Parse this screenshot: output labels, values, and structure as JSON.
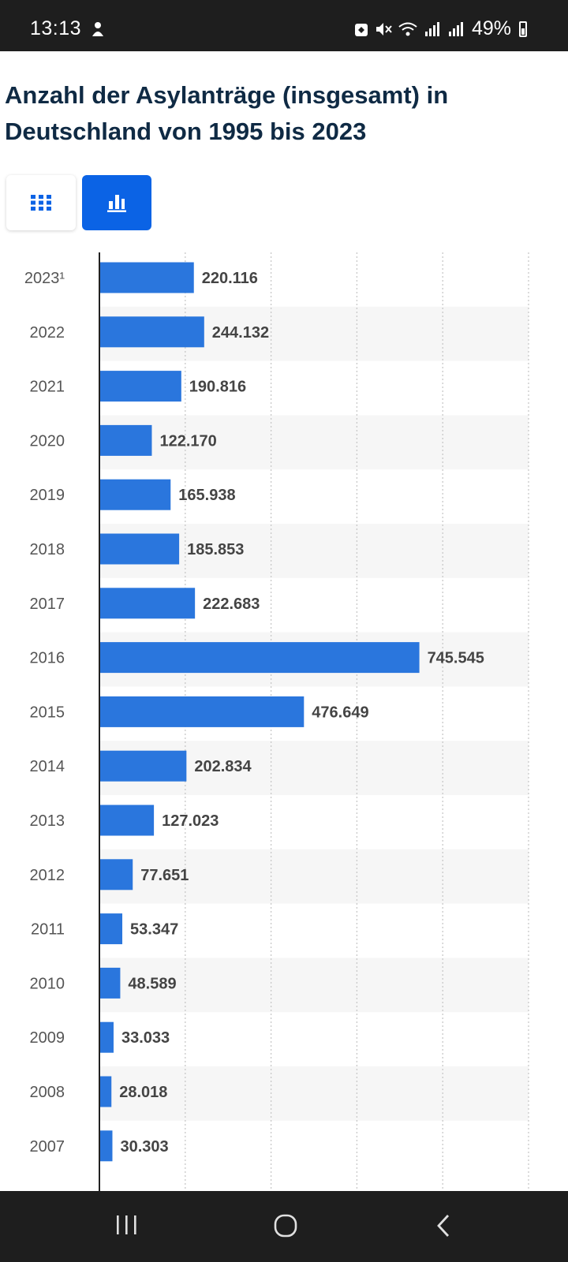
{
  "status_bar": {
    "time": "13:13",
    "battery": "49%",
    "icons": [
      "app-notification-icon",
      "mute-icon",
      "wifi-icon",
      "signal-icon",
      "signal-icon",
      "battery-icon"
    ]
  },
  "page": {
    "title": "Anzahl der Asylanträge (insgesamt) in Deutschland von 1995 bis 2023"
  },
  "view_toggle": {
    "table_icon": "grid-table-icon",
    "chart_icon": "bar-chart-icon",
    "active": "chart",
    "active_color": "#0b63e5"
  },
  "chart_data": {
    "type": "bar",
    "orientation": "horizontal",
    "title": "Anzahl der Asylanträge (insgesamt) in Deutschland von 1995 bis 2023",
    "categories": [
      "2023¹",
      "2022",
      "2021",
      "2020",
      "2019",
      "2018",
      "2017",
      "2016",
      "2015",
      "2014",
      "2013",
      "2012",
      "2011",
      "2010",
      "2009",
      "2008",
      "2007"
    ],
    "values": [
      220116,
      244132,
      190816,
      122170,
      165938,
      185853,
      222683,
      745545,
      476649,
      202834,
      127023,
      77651,
      53347,
      48589,
      33033,
      28018,
      30303
    ],
    "value_labels": [
      "220.116",
      "244.132",
      "190.816",
      "122.170",
      "165.938",
      "185.853",
      "222.683",
      "745.545",
      "476.649",
      "202.834",
      "127.023",
      "77.651",
      "53.347",
      "48.589",
      "33.033",
      "28.018",
      "30.303"
    ],
    "xlim": [
      0,
      1000000
    ],
    "grid": true,
    "bar_color": "#2a76dd",
    "stripe_color": "#f6f6f6",
    "label_color": "#444444",
    "tick_color": "#555555"
  },
  "nav_bar": {
    "buttons": [
      "recents-icon",
      "home-icon",
      "back-icon"
    ]
  }
}
